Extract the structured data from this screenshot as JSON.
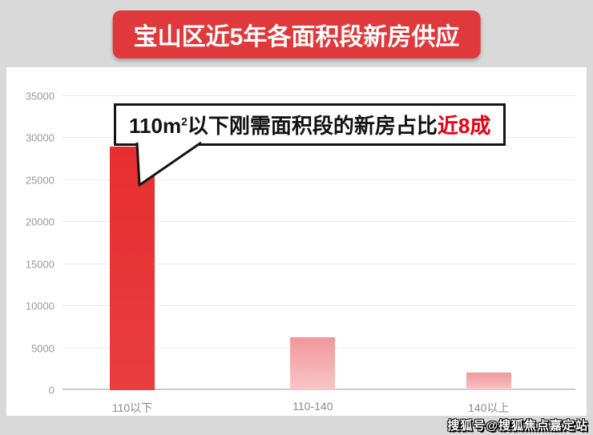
{
  "title": "宝山区近5年各面积段新房供应",
  "annotation": {
    "part1": "110m",
    "sup": "2",
    "part2": "以下刚需面积段的新房占比",
    "highlight": "近8成"
  },
  "watermark": "搜狐号@搜狐焦点嘉定站",
  "colors": {
    "badge": "#e0393c",
    "bar_main": "#e62e30",
    "bar_light_top": "#f0979b",
    "bar_light_bottom": "#f9c5c7",
    "highlight_text": "#e60012",
    "page_bg": "#d9d9d9",
    "panel_bg": "#ffffff",
    "axis_text": "#999999",
    "gridline": "#ebebeb"
  },
  "chart_data": {
    "type": "bar",
    "title": "宝山区近5年各面积段新房供应",
    "categories": [
      "110以下",
      "110-140",
      "140以上"
    ],
    "values": [
      29000,
      6300,
      2100
    ],
    "xlabel": "",
    "ylabel": "",
    "ylim": [
      0,
      35000
    ],
    "yticks": [
      0,
      5000,
      10000,
      15000,
      20000,
      25000,
      30000,
      35000
    ],
    "grid": true,
    "legend": false,
    "annotation": "110m²以下刚需面积段的新房占比近8成"
  }
}
